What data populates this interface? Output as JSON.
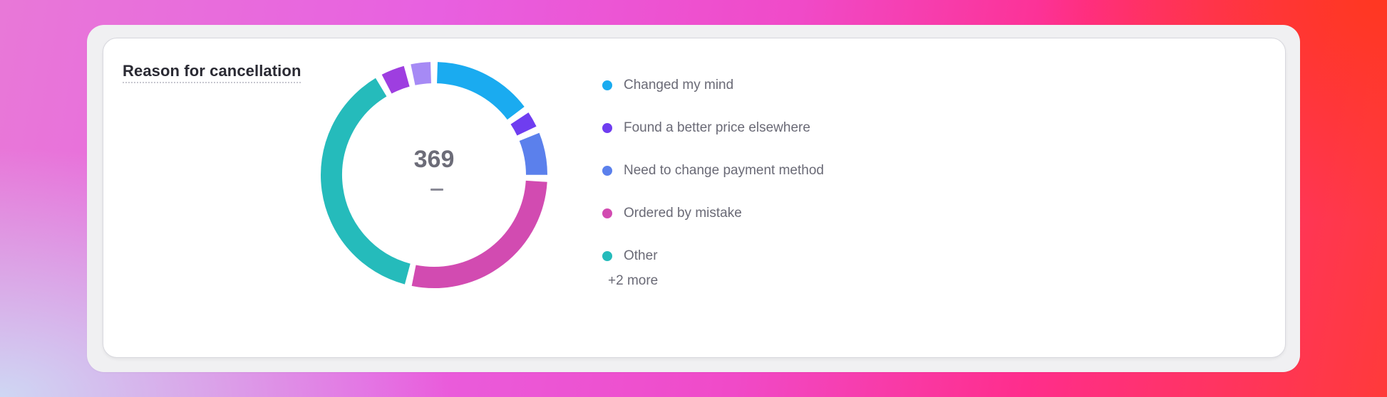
{
  "card": {
    "title": "Reason for cancellation",
    "total": "369",
    "total_sub": "—",
    "legend_more": "+2 more"
  },
  "chart_data": {
    "type": "pie",
    "donut": true,
    "center_value": 369,
    "title": "Reason for cancellation",
    "legend_position": "right",
    "slices": [
      {
        "label": "Changed my mind",
        "value": 56,
        "color": "#1aabf0",
        "in_legend": true
      },
      {
        "label": "Found a better price elsewhere",
        "value": 12,
        "color": "#6f3df0",
        "in_legend": true
      },
      {
        "label": "Need to change payment method",
        "value": 26,
        "color": "#5b80ec",
        "in_legend": true
      },
      {
        "label": "Ordered by mistake",
        "value": 104,
        "color": "#d24bb1",
        "in_legend": true
      },
      {
        "label": "Other",
        "value": 141,
        "color": "#25bbbb",
        "in_legend": true
      },
      {
        "label": "",
        "value": 16,
        "color": "#9e3ee0",
        "in_legend": false
      },
      {
        "label": "",
        "value": 14,
        "color": "#a68af5",
        "in_legend": false
      }
    ]
  }
}
